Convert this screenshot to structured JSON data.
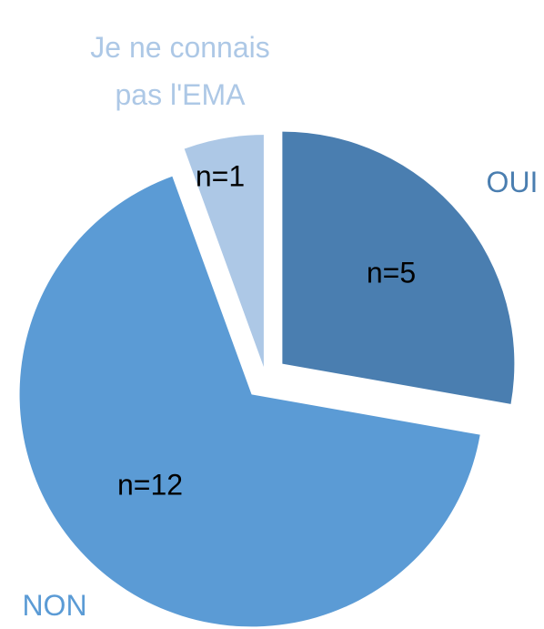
{
  "chart_data": {
    "type": "pie",
    "categories": [
      "OUI",
      "NON",
      "Je ne connais pas l'EMA"
    ],
    "values": [
      5,
      12,
      1
    ],
    "value_labels": [
      "n=5",
      "n=12",
      "n=1"
    ],
    "colors": [
      "#4a7eb0",
      "#5b9bd5",
      "#adc8e6"
    ]
  }
}
